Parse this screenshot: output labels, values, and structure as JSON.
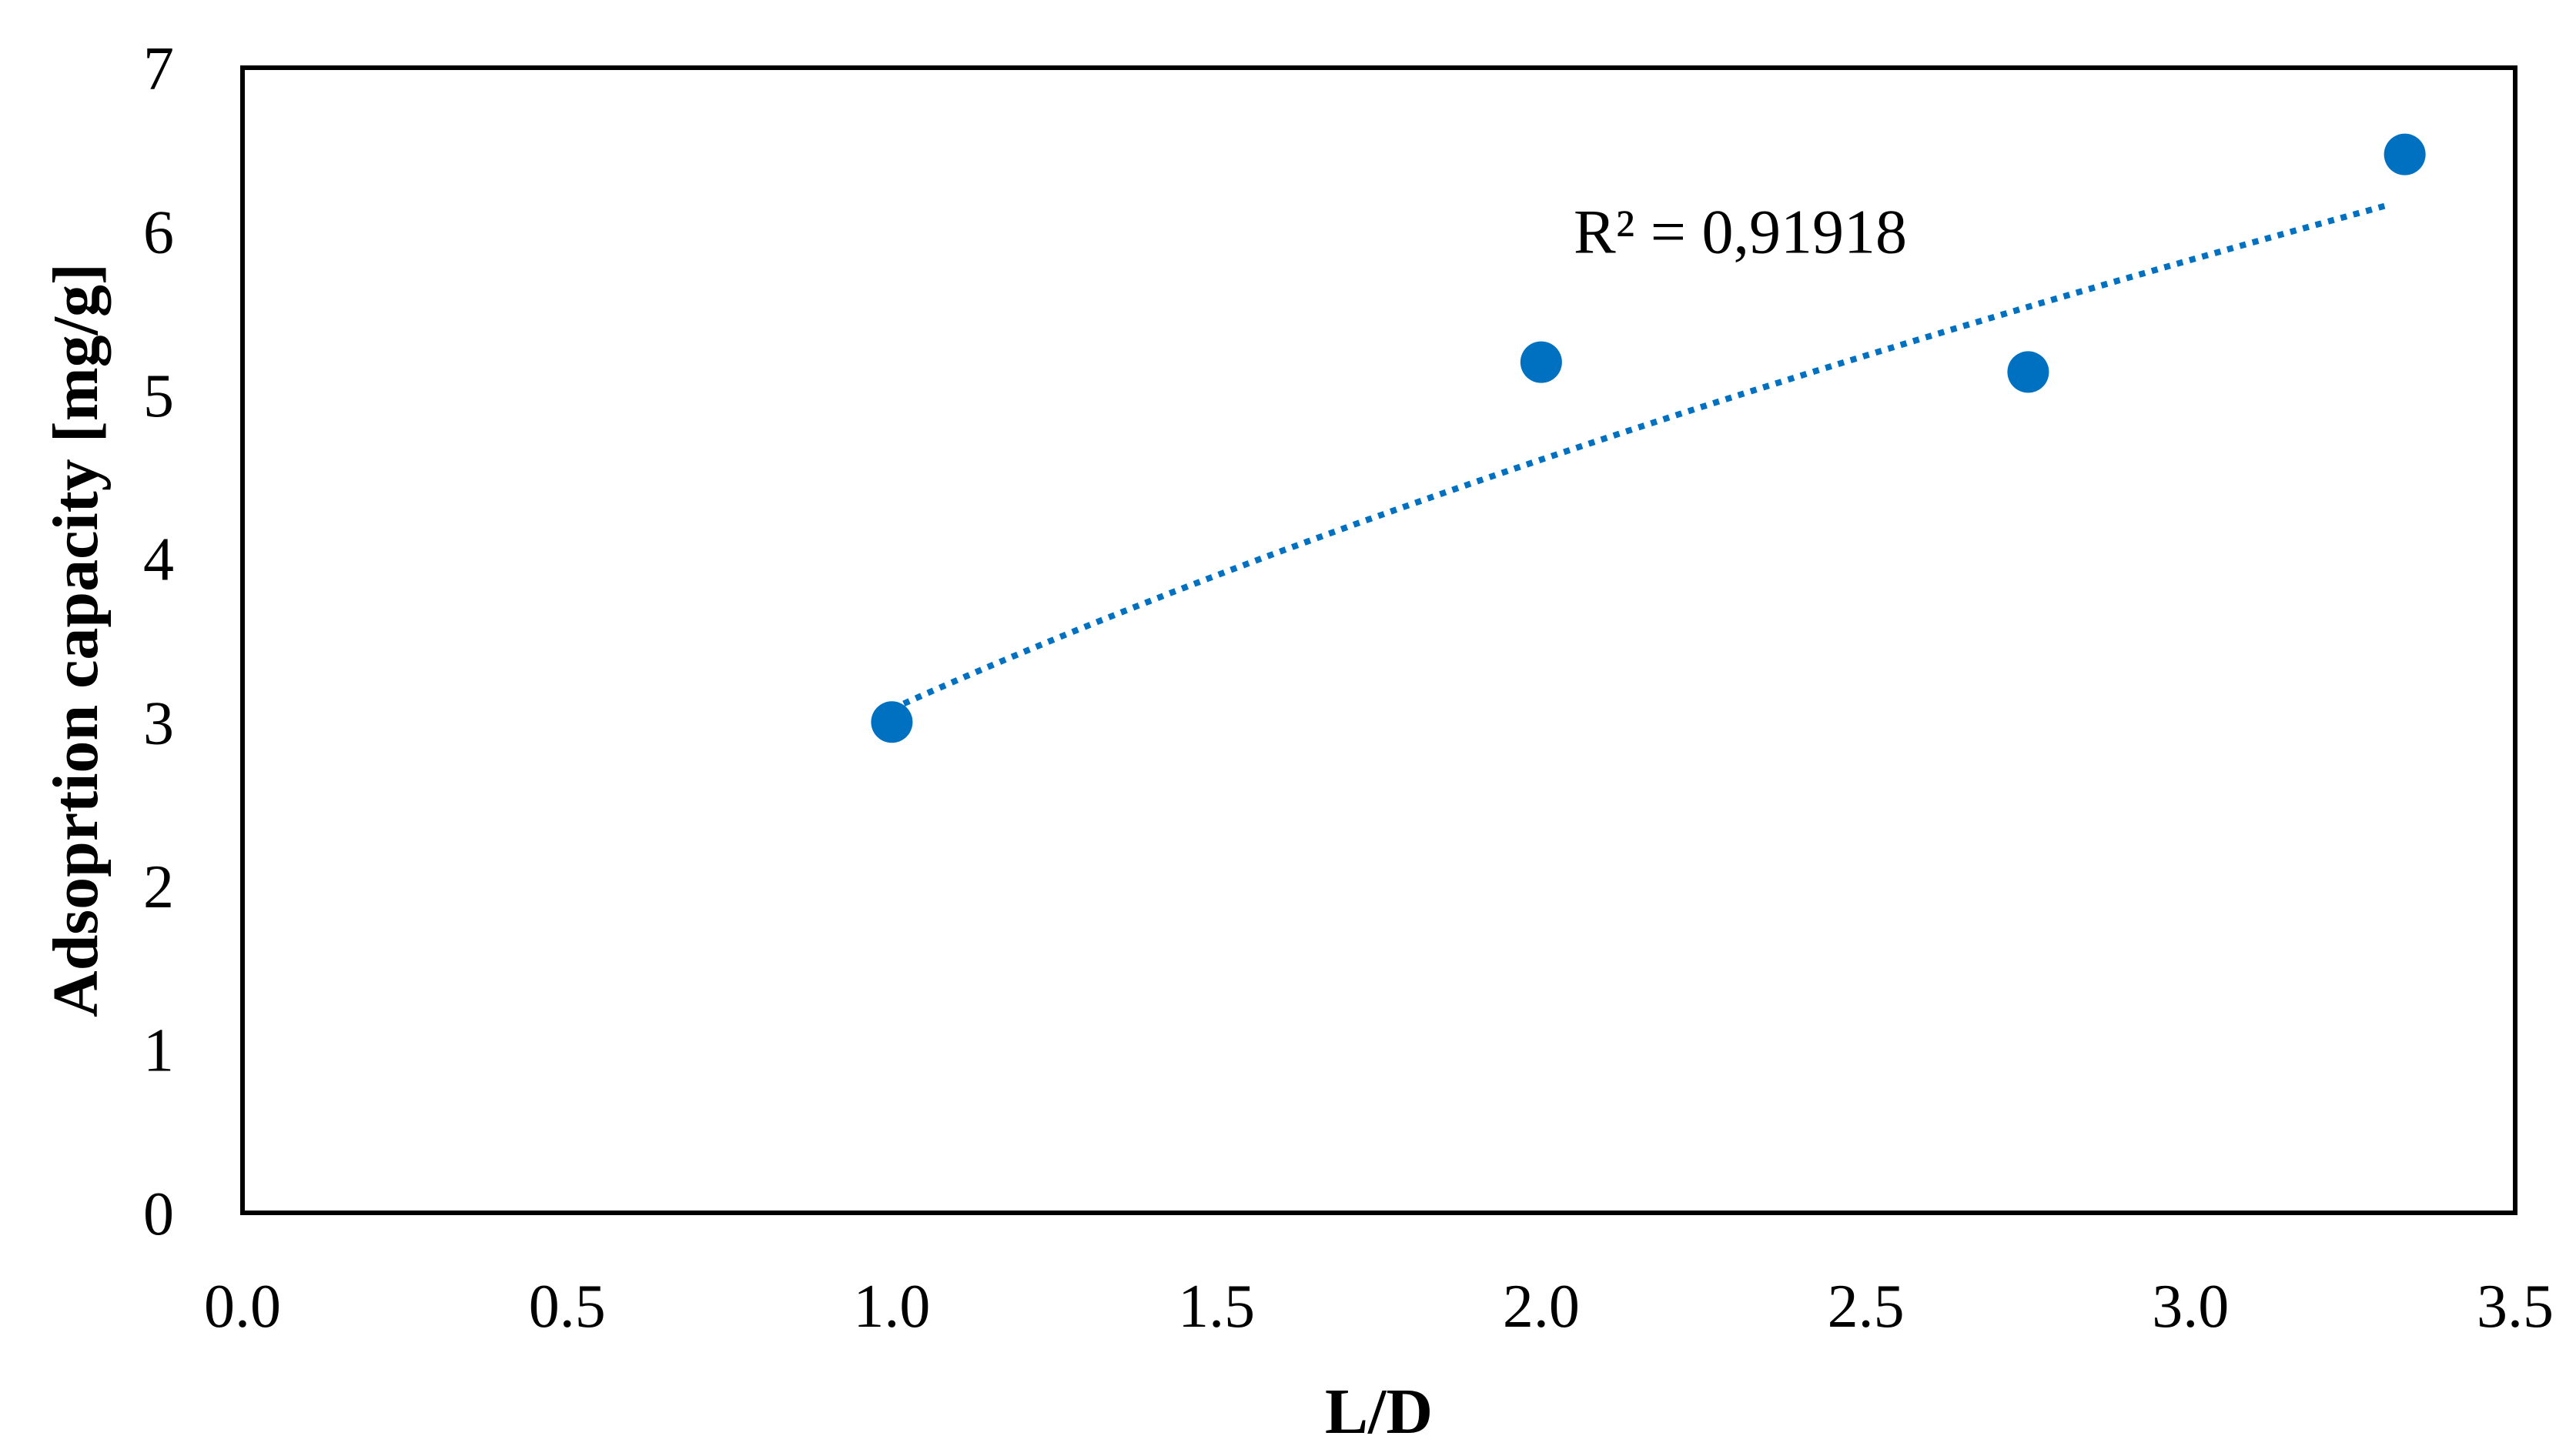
{
  "chart_data": {
    "type": "scatter",
    "title": "",
    "xlabel": "L/D",
    "ylabel": "Adsoprtion capacity [mg/g]",
    "xlim": [
      0,
      3.5
    ],
    "ylim": [
      0,
      7
    ],
    "xticks": [
      "0.0",
      "0.5",
      "1.0",
      "1.5",
      "2.0",
      "2.5",
      "3.0",
      "3.5"
    ],
    "yticks": [
      "0",
      "1",
      "2",
      "3",
      "4",
      "5",
      "6",
      "7"
    ],
    "grid": false,
    "legend": "none",
    "series": [
      {
        "name": "Adsorption capacity",
        "color": "#0070C0",
        "x": [
          1.0,
          2.0,
          2.75,
          3.33
        ],
        "y": [
          3.0,
          5.2,
          5.14,
          6.47
        ]
      }
    ],
    "trendline": {
      "type": "power",
      "color": "#0070C0",
      "style": "dotted",
      "coefficient": 3.08,
      "exponent": 0.58,
      "x_range": [
        1.0,
        3.3
      ]
    },
    "annotations": [
      {
        "text": "R² = 0,91918",
        "x": 2.05,
        "y": 6.0
      }
    ]
  }
}
